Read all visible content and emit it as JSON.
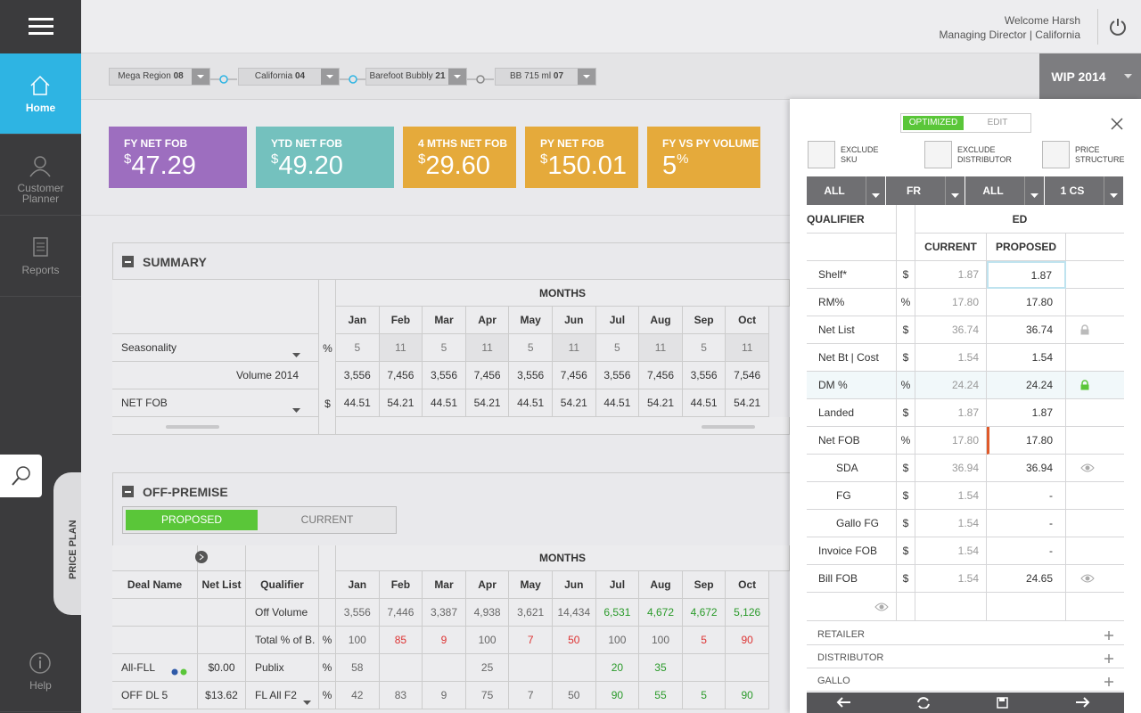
{
  "header": {
    "welcome": "Welcome",
    "user": "Harsh",
    "role": "Managing Director | California"
  },
  "nav": [
    {
      "label": "Home"
    },
    {
      "label": "Customer Planner"
    },
    {
      "label": "Reports"
    },
    {
      "label": "Help"
    }
  ],
  "side_tab": "PRICE PLAN",
  "filters": [
    {
      "name": "Mega Region",
      "code": "08"
    },
    {
      "name": "California",
      "code": "04"
    },
    {
      "name": "Barefoot Bubbly",
      "code": "21"
    },
    {
      "name": "BB 715 ml",
      "code": "07"
    }
  ],
  "plan": "WIP 2014",
  "kpis": [
    {
      "title": "FY NET FOB",
      "prefix": "$",
      "value": "47.29",
      "color": "#9d6ebf"
    },
    {
      "title": "YTD NET FOB",
      "prefix": "$",
      "value": "49.20",
      "color": "#74c1be"
    },
    {
      "title": "4 MTHS NET FOB",
      "prefix": "$",
      "value": "29.60",
      "color": "#e5aa3b"
    },
    {
      "title": "PY NET FOB",
      "prefix": "$",
      "value": "150.01",
      "color": "#e5aa3b"
    },
    {
      "title": "FY VS PY VOLUME",
      "value": "5",
      "suffix": "%",
      "color": "#e5aa3b"
    }
  ],
  "summary": {
    "title": "SUMMARY",
    "months_label": "MONTHS",
    "months": [
      "Jan",
      "Feb",
      "Mar",
      "Apr",
      "May",
      "Jun",
      "Jul",
      "Aug",
      "Sep",
      "Oct"
    ],
    "rows": [
      {
        "label": "Seasonality",
        "unit": "%",
        "values": [
          "5",
          "11",
          "5",
          "11",
          "5",
          "11",
          "5",
          "11",
          "5",
          "11"
        ]
      },
      {
        "label": "Volume 2014",
        "values": [
          "3,556",
          "7,456",
          "3,556",
          "7,456",
          "3,556",
          "7,456",
          "3,556",
          "7,456",
          "3,556",
          "7,546"
        ]
      },
      {
        "label": "NET FOB",
        "unit": "$",
        "values": [
          "44.51",
          "54.21",
          "44.51",
          "54.21",
          "44.51",
          "54.21",
          "44.51",
          "54.21",
          "44.51",
          "54.21"
        ]
      }
    ]
  },
  "off_premise": {
    "title": "OFF-PREMISE",
    "toggle": [
      "PROPOSED",
      "CURRENT"
    ],
    "columns": [
      "Deal Name",
      "Net List",
      "Qualifier"
    ],
    "months_label": "MONTHS",
    "months": [
      "Jan",
      "Feb",
      "Mar",
      "Apr",
      "May",
      "Jun",
      "Jul",
      "Aug",
      "Sep",
      "Oct"
    ],
    "rows": [
      {
        "qualifier": "Off Volume",
        "values": [
          "3,556",
          "7,446",
          "3,387",
          "4,938",
          "3,621",
          "14,434",
          "6,531",
          "4,672",
          "4,672",
          "5,126"
        ],
        "tones": [
          null,
          null,
          null,
          null,
          null,
          null,
          "green",
          "green",
          "green",
          "green"
        ]
      },
      {
        "qualifier": "Total % of B.",
        "unit": "%",
        "values": [
          "100",
          "85",
          "9",
          "100",
          "7",
          "50",
          "100",
          "100",
          "5",
          "90"
        ],
        "tones": [
          null,
          "red",
          "red",
          null,
          "red",
          "red",
          null,
          null,
          "red",
          "red"
        ]
      },
      {
        "deal": "All-FLL",
        "net_list": "$0.00",
        "qualifier": "Publix",
        "unit": "%",
        "values": [
          "58",
          null,
          null,
          "25",
          null,
          null,
          "20",
          "35",
          null,
          null
        ],
        "tones": [
          null,
          null,
          null,
          null,
          null,
          null,
          "green",
          "green",
          null,
          null
        ]
      },
      {
        "deal": "OFF DL 5",
        "net_list": "$13.62",
        "qualifier": "FL All F2",
        "unit": "%",
        "values": [
          "42",
          "83",
          "9",
          "75",
          "7",
          "50",
          "90",
          "55",
          "5",
          "90"
        ],
        "tones": [
          null,
          null,
          null,
          null,
          null,
          null,
          "green",
          "green",
          "green",
          "green"
        ]
      }
    ]
  },
  "price_panel": {
    "toggle": [
      "OPTIMIZED",
      "EDIT"
    ],
    "actions": [
      "EXCLUDE SKU",
      "EXCLUDE DISTRIBUTOR",
      "PRICE STRUCTURE"
    ],
    "dropdowns": [
      "ALL",
      "FR",
      "ALL",
      "1 CS"
    ],
    "qualifier_label": "QUALIFIER",
    "group_label": "ED",
    "current_label": "CURRENT",
    "proposed_label": "PROPOSED",
    "rows": [
      {
        "name": "Shelf*",
        "unit": "$",
        "current": "1.87",
        "proposed": "1.87"
      },
      {
        "name": "RM%",
        "unit": "%",
        "current": "17.80",
        "proposed": "17.80"
      },
      {
        "name": "Net List",
        "unit": "$",
        "current": "36.74",
        "proposed": "36.74",
        "icon": "lock"
      },
      {
        "name": "Net Bt | Cost",
        "unit": "$",
        "current": "1.54",
        "proposed": "1.54"
      },
      {
        "name": "DM %",
        "unit": "%",
        "current": "24.24",
        "proposed": "24.24",
        "icon": "lock-green"
      },
      {
        "name": "Landed",
        "unit": "$",
        "current": "1.87",
        "proposed": "1.87"
      },
      {
        "name": "Net FOB",
        "unit": "%",
        "current": "17.80",
        "proposed": "17.80"
      },
      {
        "name": "SDA",
        "unit": "$",
        "current": "36.94",
        "proposed": "36.94",
        "icon": "eye",
        "indent": true
      },
      {
        "name": "FG",
        "unit": "$",
        "current": "1.54",
        "proposed": "-",
        "indent": true
      },
      {
        "name": "Gallo FG",
        "unit": "$",
        "current": "1.54",
        "proposed": "-",
        "indent": true
      },
      {
        "name": "Invoice FOB",
        "unit": "$",
        "current": "1.54",
        "proposed": "-"
      },
      {
        "name": "Bill FOB",
        "unit": "$",
        "current": "1.54",
        "proposed": "24.65",
        "icon": "eye"
      }
    ],
    "sections": [
      "RETAILER",
      "DISTRIBUTOR",
      "GALLO"
    ]
  }
}
